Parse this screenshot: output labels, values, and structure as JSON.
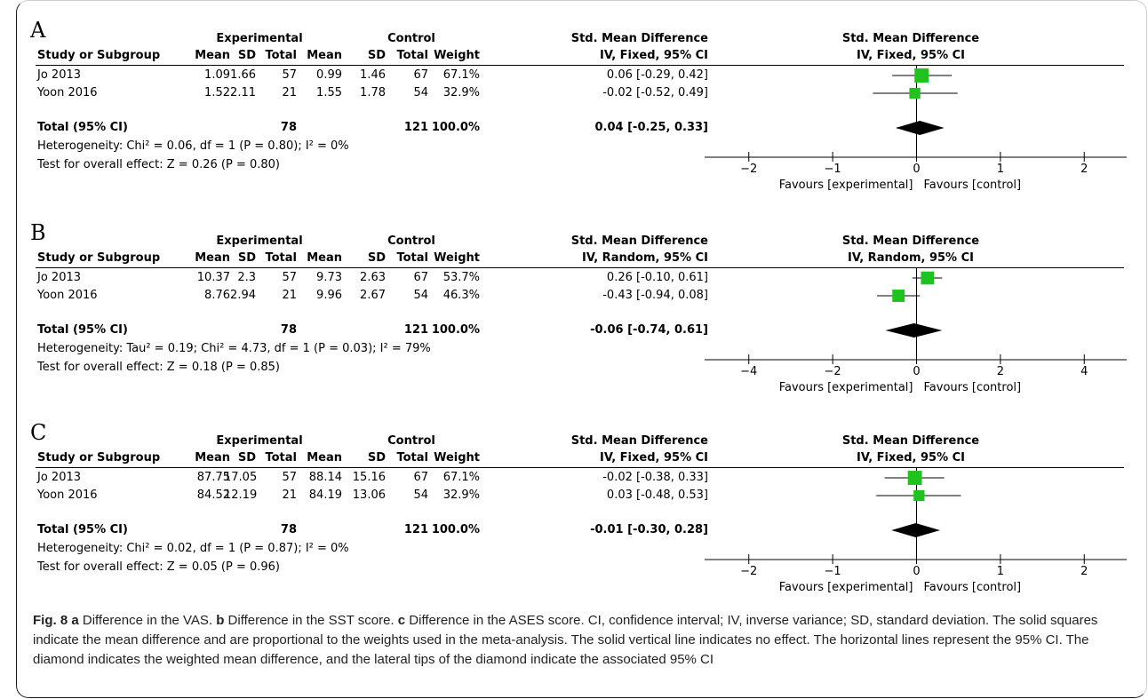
{
  "headers": {
    "study": "Study or Subgroup",
    "experimental": "Experimental",
    "control": "Control",
    "mean": "Mean",
    "sd": "SD",
    "total": "Total",
    "weight": "Weight",
    "smd": "Std. Mean Difference"
  },
  "chart_data": [
    {
      "type": "forest",
      "panel": "A",
      "method": "IV, Fixed, 95% CI",
      "columns": [
        "Study or Subgroup",
        "Mean",
        "SD",
        "Total",
        "Mean",
        "SD",
        "Total",
        "Weight",
        "IV, Fixed, 95% CI"
      ],
      "studies": [
        {
          "name": "Jo 2013",
          "exp_mean": "1.09",
          "exp_sd": "1.66",
          "exp_total": "57",
          "ctl_mean": "0.99",
          "ctl_sd": "1.46",
          "ctl_total": "67",
          "weight": "67.1%",
          "ci_text": "0.06 [-0.29, 0.42]",
          "smd": 0.06,
          "lo": -0.29,
          "hi": 0.42,
          "w": 67.1
        },
        {
          "name": "Yoon 2016",
          "exp_mean": "1.52",
          "exp_sd": "2.11",
          "exp_total": "21",
          "ctl_mean": "1.55",
          "ctl_sd": "1.78",
          "ctl_total": "54",
          "weight": "32.9%",
          "ci_text": "-0.02 [-0.52, 0.49]",
          "smd": -0.02,
          "lo": -0.52,
          "hi": 0.49,
          "w": 32.9
        }
      ],
      "total": {
        "label": "Total (95% CI)",
        "exp_total": "78",
        "ctl_total": "121",
        "weight": "100.0%",
        "ci_text": "0.04 [-0.25, 0.33]",
        "smd": 0.04,
        "lo": -0.25,
        "hi": 0.33
      },
      "heterogeneity": "Heterogeneity: Chi² = 0.06, df = 1 (P = 0.80); I² = 0%",
      "overall": "Test for overall effect: Z = 0.26 (P = 0.80)",
      "axis": {
        "ticks": [
          -2,
          -1,
          0,
          1,
          2
        ],
        "min": -2.4,
        "max": 2.4
      },
      "favours_left": "Favours [experimental]",
      "favours_right": "Favours [control]"
    },
    {
      "type": "forest",
      "panel": "B",
      "method": "IV, Random, 95% CI",
      "columns": [
        "Study or Subgroup",
        "Mean",
        "SD",
        "Total",
        "Mean",
        "SD",
        "Total",
        "Weight",
        "IV, Random, 95% CI"
      ],
      "studies": [
        {
          "name": "Jo 2013",
          "exp_mean": "10.37",
          "exp_sd": "2.3",
          "exp_total": "57",
          "ctl_mean": "9.73",
          "ctl_sd": "2.63",
          "ctl_total": "67",
          "weight": "53.7%",
          "ci_text": "0.26 [-0.10, 0.61]",
          "smd": 0.26,
          "lo": -0.1,
          "hi": 0.61,
          "w": 53.7
        },
        {
          "name": "Yoon 2016",
          "exp_mean": "8.76",
          "exp_sd": "2.94",
          "exp_total": "21",
          "ctl_mean": "9.96",
          "ctl_sd": "2.67",
          "ctl_total": "54",
          "weight": "46.3%",
          "ci_text": "-0.43 [-0.94, 0.08]",
          "smd": -0.43,
          "lo": -0.94,
          "hi": 0.08,
          "w": 46.3
        }
      ],
      "total": {
        "label": "Total (95% CI)",
        "exp_total": "78",
        "ctl_total": "121",
        "weight": "100.0%",
        "ci_text": "-0.06 [-0.74, 0.61]",
        "smd": -0.06,
        "lo": -0.74,
        "hi": 0.61
      },
      "heterogeneity": "Heterogeneity: Tau² = 0.19; Chi² = 4.73, df = 1 (P = 0.03); I² = 79%",
      "overall": "Test for overall effect: Z = 0.18 (P = 0.85)",
      "axis": {
        "ticks": [
          -4,
          -2,
          0,
          2,
          4
        ],
        "min": -4.8,
        "max": 4.8
      },
      "favours_left": "Favours [experimental]",
      "favours_right": "Favours [control]"
    },
    {
      "type": "forest",
      "panel": "C",
      "method": "IV, Fixed, 95% CI",
      "columns": [
        "Study or Subgroup",
        "Mean",
        "SD",
        "Total",
        "Mean",
        "SD",
        "Total",
        "Weight",
        "IV, Fixed, 95% CI"
      ],
      "studies": [
        {
          "name": "Jo 2013",
          "exp_mean": "87.75",
          "exp_sd": "17.05",
          "exp_total": "57",
          "ctl_mean": "88.14",
          "ctl_sd": "15.16",
          "ctl_total": "67",
          "weight": "67.1%",
          "ci_text": "-0.02 [-0.38, 0.33]",
          "smd": -0.02,
          "lo": -0.38,
          "hi": 0.33,
          "w": 67.1
        },
        {
          "name": "Yoon 2016",
          "exp_mean": "84.52",
          "exp_sd": "12.19",
          "exp_total": "21",
          "ctl_mean": "84.19",
          "ctl_sd": "13.06",
          "ctl_total": "54",
          "weight": "32.9%",
          "ci_text": "0.03 [-0.48, 0.53]",
          "smd": 0.03,
          "lo": -0.48,
          "hi": 0.53,
          "w": 32.9
        }
      ],
      "total": {
        "label": "Total (95% CI)",
        "exp_total": "78",
        "ctl_total": "121",
        "weight": "100.0%",
        "ci_text": "-0.01 [-0.30, 0.28]",
        "smd": -0.01,
        "lo": -0.3,
        "hi": 0.28
      },
      "heterogeneity": "Heterogeneity: Chi² = 0.02, df = 1 (P = 0.87); I² = 0%",
      "overall": "Test for overall effect: Z = 0.05 (P = 0.96)",
      "axis": {
        "ticks": [
          -2,
          -1,
          0,
          1,
          2
        ],
        "min": -2.4,
        "max": 2.4
      },
      "favours_left": "Favours [experimental]",
      "favours_right": "Favours [control]"
    }
  ],
  "colors": {
    "square": "#1fc21f",
    "diamond": "#000000"
  },
  "caption": {
    "fig_label": "Fig. 8",
    "a": "a",
    "a_text": " Difference in the VAS. ",
    "b": "b",
    "b_text": " Difference in the SST score. ",
    "c": "c",
    "c_text": " Difference in the ASES score. CI, confidence interval; IV, inverse variance; SD, standard deviation. The solid squares indicate the mean difference and are proportional to the weights used in the meta-analysis. The solid vertical line indicates no effect. The horizontal lines represent the 95% CI. The diamond indicates the weighted mean difference, and the lateral tips of the diamond indicate the associated 95% CI"
  }
}
